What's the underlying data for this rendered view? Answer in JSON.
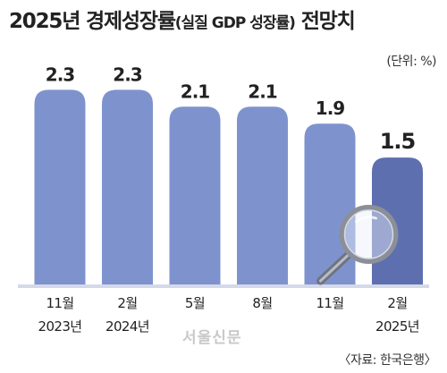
{
  "title": {
    "main": "2025년 경제성장률",
    "sub": "(실질 GDP 성장률)",
    "tail": " 전망치"
  },
  "unit_label": "(단위: %)",
  "source": "〈자료: 한국은행〉",
  "watermark": "서울신문",
  "colors": {
    "bar": "#7e93ce",
    "bar_last": "#5e6fb0",
    "baseline": "#d4d9ea",
    "label": "#222222",
    "tick": "#222222"
  },
  "icons": [
    "magnifier-icon"
  ],
  "chart_data": {
    "type": "bar",
    "categories": [
      "11월\n2023년",
      "2월\n2024년",
      "5월",
      "8월",
      "11월",
      "2월\n2025년"
    ],
    "values": [
      2.3,
      2.3,
      2.1,
      2.1,
      1.9,
      1.5
    ],
    "value_labels": [
      "2.3",
      "2.3",
      "2.1",
      "2.1",
      "1.9",
      "1.5"
    ],
    "highlight_index": 5,
    "ylim": [
      0,
      2.6
    ],
    "grid": false,
    "legend": "none",
    "xlabel": "",
    "ylabel": ""
  }
}
